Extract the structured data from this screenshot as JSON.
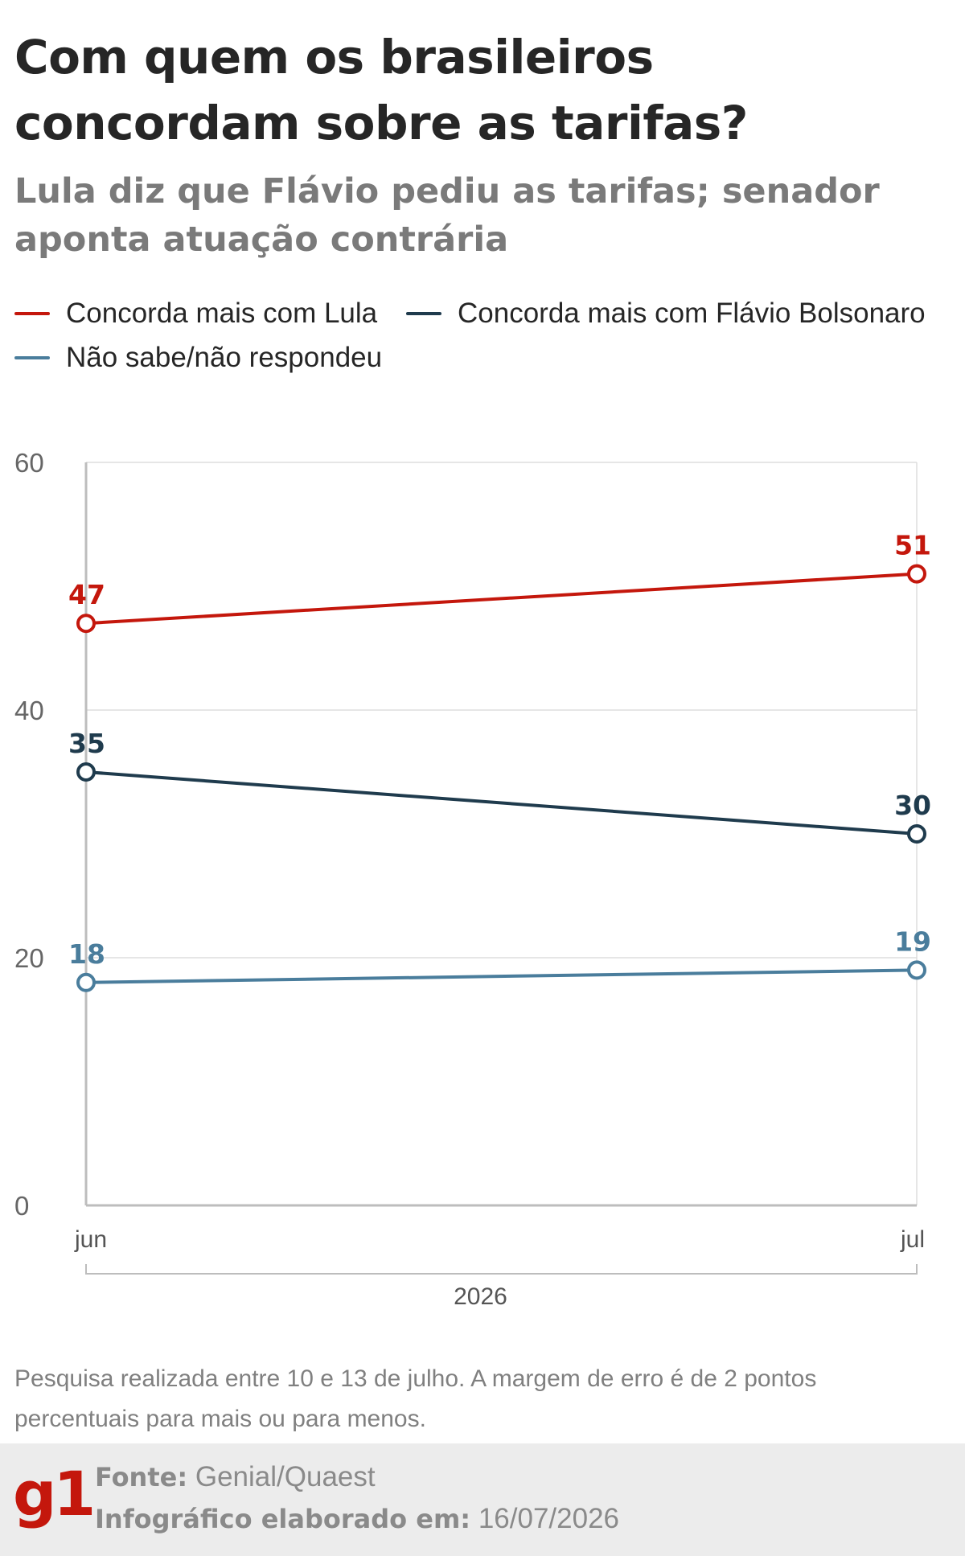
{
  "header": {
    "title": "Com quem os brasileiros concordam sobre as tarifas?",
    "subtitle": "Lula diz que Flávio pediu as tarifas; senador aponta atuação contrária"
  },
  "legend": [
    {
      "label": "Concorda mais com Lula",
      "color": "#c4170c"
    },
    {
      "label": "Concorda mais com Flávio Bolsonaro",
      "color": "#1f3b4d"
    },
    {
      "label": "Não sabe/não respondeu",
      "color": "#4a7d9c"
    }
  ],
  "chart_data": {
    "type": "line",
    "x": [
      "jun",
      "jul"
    ],
    "year_label": "2026",
    "ylim": [
      0,
      60
    ],
    "yticks": [
      0,
      20,
      40,
      60
    ],
    "grid": true,
    "series": [
      {
        "name": "Concorda mais com Lula",
        "values": [
          47,
          51
        ],
        "color": "#c4170c"
      },
      {
        "name": "Concorda mais com Flávio Bolsonaro",
        "values": [
          35,
          30
        ],
        "color": "#1f3b4d"
      },
      {
        "name": "Não sabe/não respondeu",
        "values": [
          18,
          19
        ],
        "color": "#4a7d9c"
      }
    ]
  },
  "note": "Pesquisa realizada entre 10 e 13 de julho. A margem de erro é de 2 pontos percentuais para mais ou para menos.",
  "footer": {
    "logo": "g1",
    "source_label": "Fonte:",
    "source_value": "Genial/Quaest",
    "made_label": "Infográfico elaborado em:",
    "made_value": "16/07/2026"
  }
}
